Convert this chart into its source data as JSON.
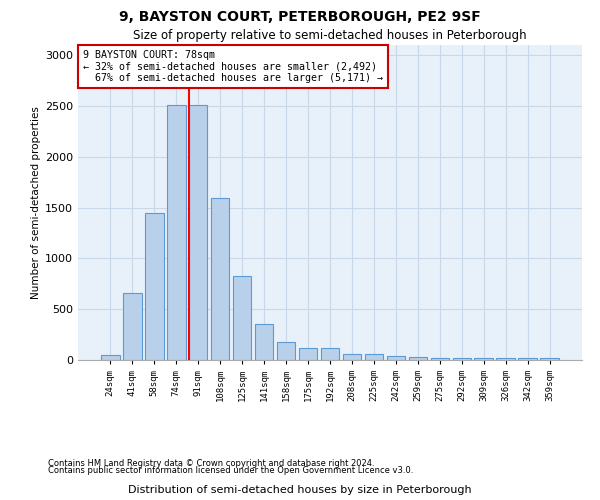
{
  "title": "9, BAYSTON COURT, PETERBOROUGH, PE2 9SF",
  "subtitle": "Size of property relative to semi-detached houses in Peterborough",
  "xlabel": "Distribution of semi-detached houses by size in Peterborough",
  "ylabel": "Number of semi-detached properties",
  "categories": [
    "24sqm",
    "41sqm",
    "58sqm",
    "74sqm",
    "91sqm",
    "108sqm",
    "125sqm",
    "141sqm",
    "158sqm",
    "175sqm",
    "192sqm",
    "208sqm",
    "225sqm",
    "242sqm",
    "259sqm",
    "275sqm",
    "292sqm",
    "309sqm",
    "326sqm",
    "342sqm",
    "359sqm"
  ],
  "values": [
    50,
    660,
    1450,
    2510,
    2510,
    1590,
    830,
    350,
    175,
    120,
    120,
    60,
    55,
    40,
    30,
    20,
    15,
    15,
    15,
    15,
    15
  ],
  "bar_color": "#b8d0ea",
  "bar_edge_color": "#5b9bd5",
  "red_line_x": 3.575,
  "smaller_pct": "32%",
  "smaller_n": "2,492",
  "larger_pct": "67%",
  "larger_n": "5,171",
  "annotation_box_color": "#ffffff",
  "annotation_box_edge": "#cc0000",
  "grid_color": "#c8d8e8",
  "background_color": "#e8f0fa",
  "ylim": [
    0,
    3100
  ],
  "yticks": [
    0,
    500,
    1000,
    1500,
    2000,
    2500,
    3000
  ],
  "footer1": "Contains HM Land Registry data © Crown copyright and database right 2024.",
  "footer2": "Contains public sector information licensed under the Open Government Licence v3.0."
}
